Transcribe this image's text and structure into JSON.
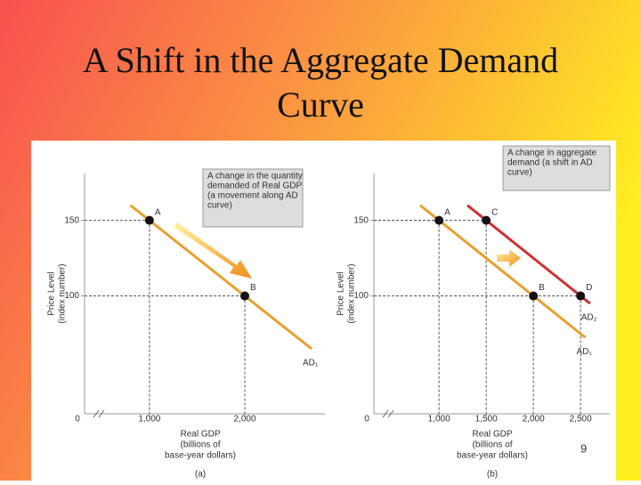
{
  "title_lines": [
    "A Shift in the Aggregate Demand",
    "Curve"
  ],
  "page_number": "9",
  "chart_data": [
    {
      "type": "line",
      "panel_label": "(a)",
      "y_label_lines": [
        "Price Level",
        "(index number)"
      ],
      "x_label_lines": [
        "Real GDP",
        "(billions of",
        "base-year dollars)"
      ],
      "origin_label": "0",
      "annotation_lines": [
        "A change in the quantity",
        "demanded of Real GDP",
        "(a movement along AD",
        "curve)"
      ],
      "xlim": [
        320,
        2840
      ],
      "ylim": [
        22,
        181
      ],
      "xticks": [
        {
          "value": 1000,
          "label": "1,000"
        },
        {
          "value": 2000,
          "label": "2,000"
        }
      ],
      "yticks": [
        100,
        150
      ],
      "series": [
        {
          "name": "AD₁",
          "color": "#e8a030",
          "x": [
            800,
            2700
          ],
          "values": [
            160,
            65
          ]
        }
      ],
      "points": [
        {
          "label": "A",
          "x": 1000,
          "y": 150
        },
        {
          "label": "B",
          "x": 2000,
          "y": 100
        }
      ]
    },
    {
      "type": "line",
      "panel_label": "(b)",
      "y_label_lines": [
        "Price Level",
        "(index number)"
      ],
      "x_label_lines": [
        "Real GDP",
        "(billions of",
        "base-year dollars)"
      ],
      "origin_label": "0",
      "annotation_lines": [
        "A change in aggregate",
        "demand (a shift in AD",
        "curve)"
      ],
      "xlim": [
        310,
        2810
      ],
      "ylim": [
        22,
        181
      ],
      "xticks": [
        {
          "value": 1000,
          "label": "1,000"
        },
        {
          "value": 1500,
          "label": "1,500"
        },
        {
          "value": 2000,
          "label": "2,000"
        },
        {
          "value": 2500,
          "label": "2,500"
        }
      ],
      "yticks": [
        100,
        150
      ],
      "series": [
        {
          "name": "AD₁",
          "color": "#e8a030",
          "x": [
            800,
            2550
          ],
          "values": [
            160,
            72.5
          ]
        },
        {
          "name": "AD₂",
          "color": "#d03030",
          "x": [
            1300,
            2600
          ],
          "values": [
            160,
            95
          ]
        }
      ],
      "points": [
        {
          "label": "A",
          "x": 1000,
          "y": 150
        },
        {
          "label": "C",
          "x": 1500,
          "y": 150
        },
        {
          "label": "B",
          "x": 2000,
          "y": 100
        },
        {
          "label": "D",
          "x": 2500,
          "y": 100
        }
      ]
    }
  ]
}
